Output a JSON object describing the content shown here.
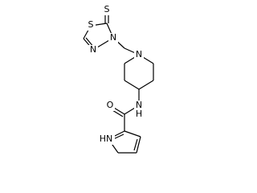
{
  "atoms": {
    "thione_s": "S",
    "ring_s": "S",
    "n3": "N",
    "n4": "N",
    "piperidine_n": "N",
    "amide_n": "N",
    "amide_h": "H",
    "carbonyl_o": "O",
    "pyrrole_nh": "HN"
  }
}
